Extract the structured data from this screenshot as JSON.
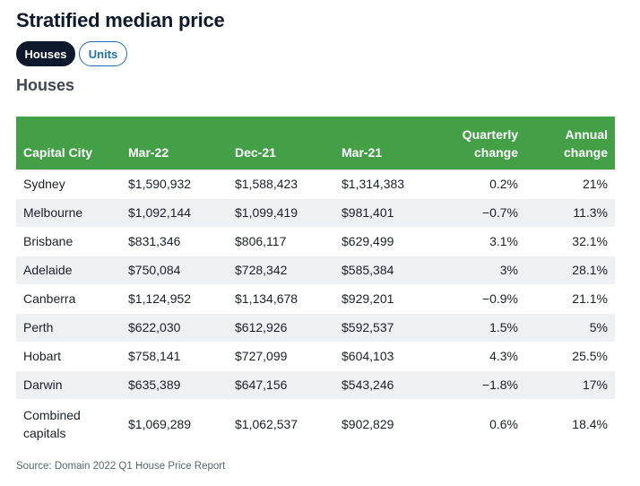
{
  "page": {
    "title": "Stratified median price",
    "section_title": "Houses",
    "source": "Source: Domain 2022 Q1 House Price Report"
  },
  "toggle": {
    "houses_label": "Houses",
    "units_label": "Units",
    "selected": "Houses"
  },
  "colors": {
    "header_green": "#43a047",
    "active_toggle": "#0e1a2b",
    "link_blue": "#1d6fb8"
  },
  "table": {
    "headers": {
      "city": "Capital City",
      "mar22": "Mar-22",
      "dec21": "Dec-21",
      "mar21": "Mar-21",
      "quarterly_line1": "Quarterly",
      "quarterly_line2": "change",
      "annual_line1": "Annual",
      "annual_line2": "change"
    },
    "rows": [
      {
        "city": "Sydney",
        "mar22": "$1,590,932",
        "dec21": "$1,588,423",
        "mar21": "$1,314,383",
        "quarterly": "0.2%",
        "annual": "21%"
      },
      {
        "city": "Melbourne",
        "mar22": "$1,092,144",
        "dec21": "$1,099,419",
        "mar21": "$981,401",
        "quarterly": "−0.7%",
        "annual": "11.3%"
      },
      {
        "city": "Brisbane",
        "mar22": "$831,346",
        "dec21": "$806,117",
        "mar21": "$629,499",
        "quarterly": "3.1%",
        "annual": "32.1%"
      },
      {
        "city": "Adelaide",
        "mar22": "$750,084",
        "dec21": "$728,342",
        "mar21": "$585,384",
        "quarterly": "3%",
        "annual": "28.1%"
      },
      {
        "city": "Canberra",
        "mar22": "$1,124,952",
        "dec21": "$1,134,678",
        "mar21": "$929,201",
        "quarterly": "−0.9%",
        "annual": "21.1%"
      },
      {
        "city": "Perth",
        "mar22": "$622,030",
        "dec21": "$612,926",
        "mar21": "$592,537",
        "quarterly": "1.5%",
        "annual": "5%"
      },
      {
        "city": "Hobart",
        "mar22": "$758,141",
        "dec21": "$727,099",
        "mar21": "$604,103",
        "quarterly": "4.3%",
        "annual": "25.5%"
      },
      {
        "city": "Darwin",
        "mar22": "$635,389",
        "dec21": "$647,156",
        "mar21": "$543,246",
        "quarterly": "−1.8%",
        "annual": "17%"
      },
      {
        "city_line1": "Combined",
        "city_line2": "capitals",
        "mar22": "$1,069,289",
        "dec21": "$1,062,537",
        "mar21": "$902,829",
        "quarterly": "0.6%",
        "annual": "18.4%"
      }
    ]
  }
}
